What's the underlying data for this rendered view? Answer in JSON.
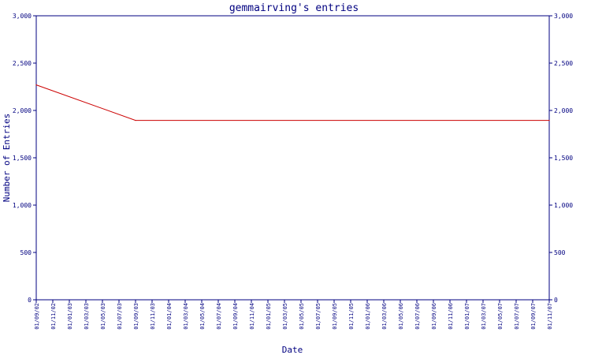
{
  "chart_data": {
    "type": "line",
    "title": "gemmairving's entries",
    "xlabel": "Date",
    "ylabel": "Number of Entries",
    "ylim": [
      0,
      3000
    ],
    "yticks": [
      "0",
      "500",
      "1,000",
      "1,500",
      "2,000",
      "2,500",
      "3,000"
    ],
    "ytick_values": [
      0,
      500,
      1000,
      1500,
      2000,
      2500,
      3000
    ],
    "xticks": [
      "01/09/02",
      "01/11/02",
      "01/01/03",
      "01/03/03",
      "01/05/03",
      "01/07/03",
      "01/09/03",
      "01/11/03",
      "01/01/04",
      "01/03/04",
      "01/05/04",
      "01/07/04",
      "01/09/04",
      "01/11/04",
      "01/01/05",
      "01/03/05",
      "01/05/05",
      "01/07/05",
      "01/09/05",
      "01/11/05",
      "01/01/06",
      "01/03/06",
      "01/05/06",
      "01/07/06",
      "01/09/06",
      "01/11/06",
      "01/01/07",
      "01/03/07",
      "01/05/07",
      "01/07/07",
      "01/09/07",
      "01/11/07"
    ],
    "series": [
      {
        "x": [
          "01/09/02",
          "01/09/03",
          "01/11/07"
        ],
        "values": [
          2270,
          1895,
          1895
        ],
        "color": "#cc0000"
      }
    ],
    "grid": false,
    "axis_color": "#000080",
    "text_color": "#000080"
  }
}
